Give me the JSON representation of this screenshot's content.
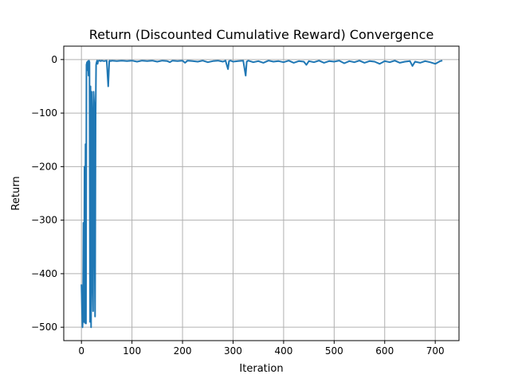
{
  "chart_data": {
    "type": "line",
    "title": "Return (Discounted Cumulative Reward) Convergence",
    "xlabel": "Iteration",
    "ylabel": "Return",
    "xlim": [
      -35,
      747
    ],
    "ylim": [
      -525,
      25
    ],
    "x_ticks": [
      0,
      100,
      200,
      300,
      400,
      500,
      600,
      700
    ],
    "y_ticks": [
      0,
      -100,
      -200,
      -300,
      -400,
      -500
    ],
    "x_tick_labels": [
      "0",
      "100",
      "200",
      "300",
      "400",
      "500",
      "600",
      "700"
    ],
    "y_tick_labels": [
      "0",
      "−100",
      "−200",
      "−300",
      "−400",
      "−500"
    ],
    "grid": true,
    "series": [
      {
        "color": "#1f77b4",
        "x": [
          0,
          2,
          3,
          4,
          5,
          6,
          7,
          8,
          9,
          10,
          11,
          12,
          13,
          14,
          15,
          16,
          17,
          18,
          19,
          20,
          21,
          22,
          23,
          24,
          25,
          26,
          27,
          28,
          29,
          30,
          31,
          32,
          33,
          35,
          36,
          38,
          40,
          45,
          50,
          53,
          55,
          56,
          58,
          60,
          70,
          80,
          90,
          100,
          110,
          120,
          130,
          140,
          150,
          160,
          170,
          175,
          180,
          190,
          200,
          205,
          210,
          220,
          230,
          240,
          250,
          260,
          270,
          280,
          285,
          290,
          292,
          295,
          300,
          310,
          320,
          325,
          327,
          330,
          340,
          350,
          360,
          370,
          380,
          390,
          400,
          410,
          420,
          430,
          440,
          445,
          450,
          460,
          470,
          480,
          490,
          500,
          510,
          520,
          530,
          540,
          550,
          560,
          570,
          580,
          590,
          600,
          610,
          620,
          630,
          640,
          650,
          655,
          660,
          670,
          680,
          690,
          700,
          710,
          714
        ],
        "y": [
          -420,
          -500,
          -480,
          -305,
          -490,
          -200,
          -492,
          -158,
          -493,
          -10,
          -5,
          -20,
          -3,
          -30,
          -2,
          -5,
          -490,
          -50,
          -500,
          -60,
          -100,
          -420,
          -470,
          -60,
          -80,
          -330,
          -480,
          -100,
          -10,
          -5,
          -2,
          -8,
          -3,
          -2,
          -2,
          -3,
          -2,
          -3,
          -2,
          -50,
          -3,
          -2,
          -3,
          -2,
          -3,
          -2,
          -3,
          -2,
          -4,
          -2,
          -3,
          -2,
          -4,
          -2,
          -3,
          -5,
          -2,
          -3,
          -2,
          -6,
          -2,
          -3,
          -4,
          -2,
          -5,
          -3,
          -2,
          -4,
          -2,
          -18,
          -3,
          -2,
          -4,
          -3,
          -2,
          -30,
          -4,
          -2,
          -5,
          -3,
          -6,
          -2,
          -4,
          -3,
          -5,
          -2,
          -6,
          -3,
          -4,
          -10,
          -3,
          -5,
          -2,
          -6,
          -3,
          -4,
          -2,
          -7,
          -3,
          -5,
          -2,
          -6,
          -3,
          -4,
          -8,
          -3,
          -5,
          -2,
          -6,
          -4,
          -3,
          -12,
          -4,
          -6,
          -3,
          -5,
          -8,
          -3,
          -2
        ]
      }
    ]
  }
}
